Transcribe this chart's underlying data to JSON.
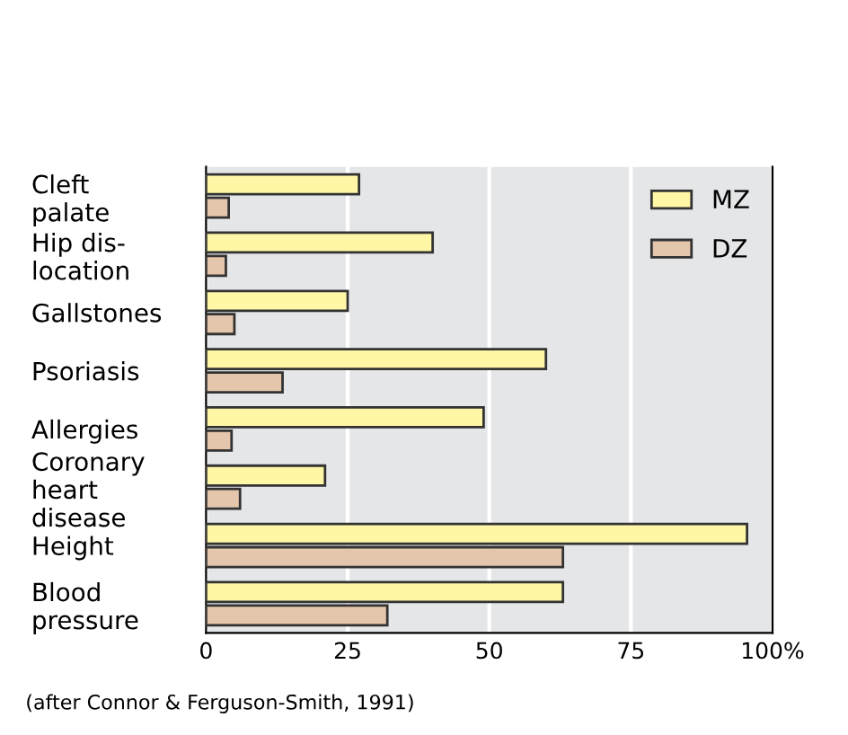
{
  "chart_data": {
    "type": "bar",
    "orientation": "horizontal",
    "categories": [
      "Cleft\npalate",
      "Hip dis-\nlocation",
      "Gallstones",
      "Psoriasis",
      "Allergies",
      "Coronary\nheart\ndisease",
      "Height",
      "Blood\npressure"
    ],
    "series": [
      {
        "name": "MZ",
        "color": "#fff6a6",
        "values": [
          27,
          40,
          25,
          60,
          49,
          21,
          95.5,
          63
        ]
      },
      {
        "name": "DZ",
        "color": "#e4c6ad",
        "values": [
          4,
          3.5,
          5,
          13.5,
          4.5,
          6,
          63,
          32
        ]
      }
    ],
    "xlim": [
      0,
      100
    ],
    "xticks": [
      0,
      25,
      50,
      75,
      {
        "value": 100,
        "label": "100%"
      }
    ],
    "grid": "x",
    "legend": "top right",
    "annotations": [
      "(after Connor & Ferguson-Smith, 1991)"
    ]
  }
}
